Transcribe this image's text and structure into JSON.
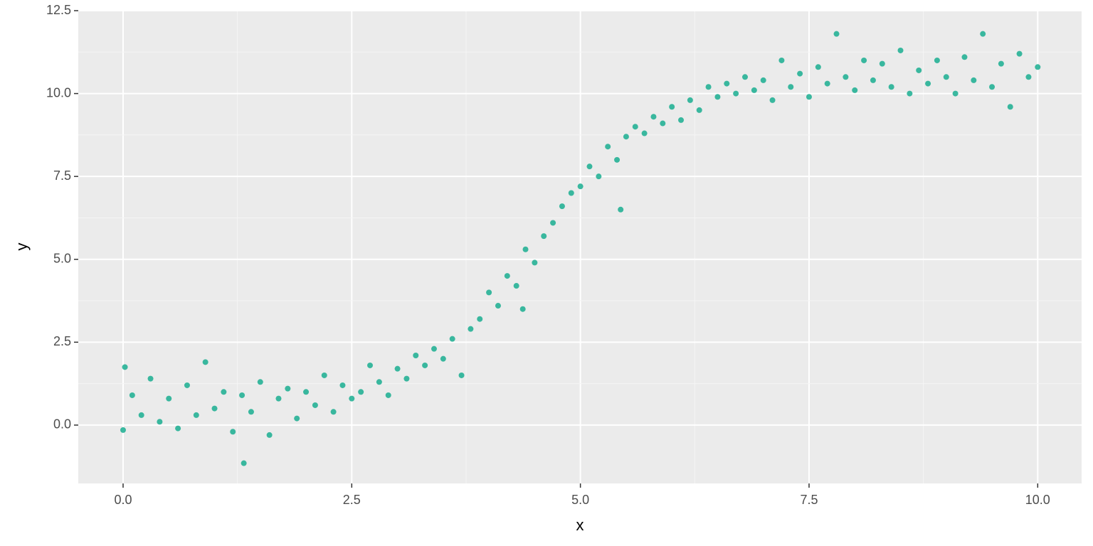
{
  "chart_data": {
    "type": "scatter",
    "x_label": "x",
    "y_label": "y",
    "color": "#1aae90",
    "grid": true,
    "xlim": [
      -0.49,
      10.48
    ],
    "ylim": [
      -1.76,
      12.5
    ],
    "xticks": [
      {
        "value": 0,
        "label": "0.0"
      },
      2.5,
      {
        "value": 5,
        "label": "5.0"
      },
      7.5,
      {
        "value": 10,
        "label": "10.0"
      }
    ],
    "yticks": [
      {
        "value": 0,
        "label": "0.0"
      },
      2.5,
      {
        "value": 5,
        "label": "5.0"
      },
      7.5,
      {
        "value": 10,
        "label": "10.0"
      },
      12.5
    ],
    "x": [
      0.0,
      0.1,
      0.2,
      0.3,
      0.4,
      0.5,
      0.6,
      0.7,
      0.8,
      0.9,
      1.0,
      1.1,
      1.2,
      1.3,
      1.4,
      1.5,
      1.6,
      1.7,
      1.8,
      1.9,
      2.0,
      2.1,
      2.2,
      2.3,
      2.4,
      2.5,
      2.6,
      2.7,
      2.8,
      2.9,
      3.0,
      3.1,
      3.2,
      3.3,
      3.4,
      3.5,
      3.6,
      3.7,
      3.8,
      3.9,
      4.0,
      4.1,
      4.2,
      4.3,
      4.4,
      4.5,
      4.6,
      4.7,
      4.8,
      4.9,
      5.0,
      5.1,
      5.2,
      5.3,
      5.4,
      5.5,
      5.6,
      5.7,
      5.8,
      5.9,
      6.0,
      6.1,
      6.2,
      6.3,
      6.4,
      6.5,
      6.6,
      6.7,
      6.8,
      6.9,
      7.0,
      7.1,
      7.2,
      7.3,
      7.4,
      7.5,
      7.6,
      7.7,
      7.8,
      7.9,
      8.0,
      8.1,
      8.2,
      8.3,
      8.4,
      8.5,
      8.6,
      8.7,
      8.8,
      8.9,
      9.0,
      9.1,
      9.2,
      9.3,
      9.4,
      9.5,
      9.6,
      9.7,
      9.8,
      9.9,
      10.0,
      1.32,
      5.44,
      4.37,
      0.02
    ],
    "values": [
      -0.15,
      0.9,
      0.3,
      1.4,
      0.1,
      0.8,
      -0.1,
      1.2,
      0.3,
      1.9,
      0.5,
      1.0,
      -0.2,
      0.9,
      0.4,
      1.3,
      -0.3,
      0.8,
      1.1,
      0.2,
      1.0,
      0.6,
      1.5,
      0.4,
      1.2,
      0.8,
      1.0,
      1.8,
      1.3,
      0.9,
      1.7,
      1.4,
      2.1,
      1.8,
      2.3,
      2.0,
      2.6,
      1.5,
      2.9,
      3.2,
      4.0,
      3.6,
      4.5,
      4.2,
      5.3,
      4.9,
      5.7,
      6.1,
      6.6,
      7.0,
      7.2,
      7.8,
      7.5,
      8.4,
      8.0,
      8.7,
      9.0,
      8.8,
      9.3,
      9.1,
      9.6,
      9.2,
      9.8,
      9.5,
      10.2,
      9.9,
      10.3,
      10.0,
      10.5,
      10.1,
      10.4,
      9.8,
      11.0,
      10.2,
      10.6,
      9.9,
      10.8,
      10.3,
      11.8,
      10.5,
      10.1,
      11.0,
      10.4,
      10.9,
      10.2,
      11.3,
      10.0,
      10.7,
      10.3,
      11.0,
      10.5,
      10.0,
      11.1,
      10.4,
      11.8,
      10.2,
      10.9,
      9.6,
      11.2,
      10.5,
      10.8,
      -1.15,
      6.5,
      3.5,
      1.75
    ]
  }
}
